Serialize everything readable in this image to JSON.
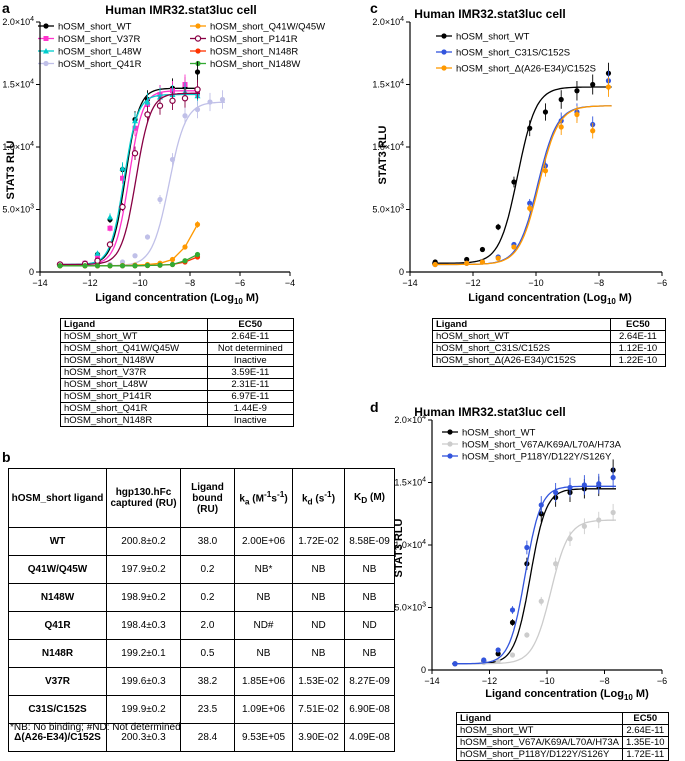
{
  "panel_letters": {
    "a": "a",
    "b": "b",
    "c": "c",
    "d": "d"
  },
  "chart_data": [
    {
      "id": "a",
      "type": "scatter",
      "title": "Human IMR32.stat3luc cell",
      "xlabel_prefix": "Ligand concentration (Log",
      "xlabel_sub": "10",
      "xlabel_suffix": " M)",
      "ylabel": "STAT3 RLU",
      "xlim": [
        -14,
        -4
      ],
      "ylim": [
        0,
        20000
      ],
      "xticks": [
        -14,
        -12,
        -10,
        -8,
        -6,
        -4
      ],
      "yticks": [
        0,
        5000,
        10000,
        15000,
        20000
      ],
      "ytick_labels": [
        {
          "base": "0"
        },
        {
          "base": "5.0×10",
          "exp": "3"
        },
        {
          "base": "1.0×10",
          "exp": "4"
        },
        {
          "base": "1.5×10",
          "exp": "4"
        },
        {
          "base": "2.0×10",
          "exp": "4"
        }
      ],
      "series": [
        {
          "name": "hOSM_short_WT",
          "color": "#000000",
          "marker": "circle",
          "ec50_log": -10.58,
          "bottom": 600,
          "top": 14700,
          "slope": 1.6,
          "x": [
            -13.2,
            -12.2,
            -11.7,
            -11.2,
            -10.7,
            -10.2,
            -9.7,
            -9.2,
            -8.7,
            -8.2,
            -7.7
          ],
          "y": [
            600,
            700,
            1400,
            4200,
            8200,
            12200,
            13800,
            14200,
            14700,
            14800,
            16000
          ]
        },
        {
          "name": "hOSM_short_V37R",
          "color": "#ff33cc",
          "marker": "square",
          "ec50_log": -10.44,
          "bottom": 600,
          "top": 14500,
          "slope": 1.6,
          "x": [
            -13.2,
            -12.2,
            -11.7,
            -11.2,
            -10.7,
            -10.2,
            -9.7,
            -9.2,
            -8.7,
            -8.2,
            -7.7
          ],
          "y": [
            600,
            700,
            1200,
            3500,
            7500,
            11500,
            13400,
            14200,
            14500,
            15000,
            14300
          ]
        },
        {
          "name": "hOSM_short_L48W",
          "color": "#00cccc",
          "marker": "triangle",
          "ec50_log": -10.64,
          "bottom": 600,
          "top": 14200,
          "slope": 1.6,
          "x": [
            -13.2,
            -12.2,
            -11.7,
            -11.2,
            -10.7,
            -10.2,
            -9.7,
            -9.2,
            -8.7,
            -8.2,
            -7.7
          ],
          "y": [
            600,
            700,
            1500,
            4400,
            8300,
            12100,
            13600,
            14000,
            14200,
            14400,
            14100
          ]
        },
        {
          "name": "hOSM_short_Q41R",
          "color": "#c0c0e8",
          "marker": "circle",
          "ec50_log": -8.84,
          "bottom": 500,
          "top": 13600,
          "slope": 1.3,
          "x": [
            -13.2,
            -12.2,
            -11.7,
            -11.2,
            -10.7,
            -10.2,
            -9.7,
            -9.2,
            -8.7,
            -8.2,
            -7.7,
            -7.2,
            -6.7
          ],
          "y": [
            500,
            500,
            550,
            600,
            800,
            1300,
            2800,
            5800,
            9000,
            12500,
            13000,
            13600,
            13800
          ]
        },
        {
          "name": "hOSM_short_Q41W/Q45W",
          "color": "#ff9900",
          "marker": "circle",
          "ec50_log": null,
          "path_only": true,
          "x": [
            -13.2,
            -12.2,
            -11.7,
            -11.2,
            -10.7,
            -10.2,
            -9.7,
            -9.2,
            -8.7,
            -8.2,
            -7.7
          ],
          "y": [
            500,
            500,
            500,
            500,
            520,
            550,
            600,
            700,
            1000,
            2000,
            3800
          ]
        },
        {
          "name": "hOSM_short_P141R",
          "color": "#880044",
          "marker": "open-circle",
          "ec50_log": -10.16,
          "bottom": 600,
          "top": 14300,
          "slope": 1.5,
          "x": [
            -13.2,
            -12.2,
            -11.7,
            -11.2,
            -10.7,
            -10.2,
            -9.7,
            -9.2,
            -8.7,
            -8.2,
            -7.7
          ],
          "y": [
            600,
            650,
            900,
            2200,
            5200,
            9500,
            12600,
            13300,
            13700,
            13900,
            14600
          ]
        },
        {
          "name": "hOSM_short_N148R",
          "color": "#ff3300",
          "marker": "circle",
          "ec50_log": null,
          "path_only": true,
          "x": [
            -13.2,
            -12.2,
            -11.7,
            -11.2,
            -10.7,
            -10.2,
            -9.7,
            -9.2,
            -8.7,
            -8.2,
            -7.7
          ],
          "y": [
            500,
            500,
            500,
            500,
            500,
            500,
            520,
            550,
            600,
            800,
            1200
          ]
        },
        {
          "name": "hOSM_short_N148W",
          "color": "#33aa33",
          "marker": "circle",
          "ec50_log": null,
          "path_only": true,
          "x": [
            -13.2,
            -12.2,
            -11.7,
            -11.2,
            -10.7,
            -10.2,
            -9.7,
            -9.2,
            -8.7,
            -8.2,
            -7.7
          ],
          "y": [
            500,
            500,
            500,
            500,
            500,
            500,
            520,
            550,
            600,
            900,
            1400
          ]
        }
      ],
      "table": {
        "headers": [
          "Ligand",
          "EC50"
        ],
        "rows": [
          [
            "hOSM_short_WT",
            "2.64E-11"
          ],
          [
            "hOSM_short_Q41W/Q45W",
            "Not determined"
          ],
          [
            "hOSM_short_N148W",
            "Inactive"
          ],
          [
            "hOSM_short_V37R",
            "3.59E-11"
          ],
          [
            "hOSM_short_L48W",
            "2.31E-11"
          ],
          [
            "hOSM_short_P141R",
            "6.97E-11"
          ],
          [
            "hOSM_short_Q41R",
            "1.44E-9"
          ],
          [
            "hOSM_short_N148R",
            "Inactive"
          ]
        ]
      }
    },
    {
      "id": "c",
      "type": "scatter",
      "title": "Human IMR32.stat3luc cell",
      "xlabel_prefix": "Ligand concentration (Log",
      "xlabel_sub": "10",
      "xlabel_suffix": " M)",
      "ylabel": "STAT3 RLU",
      "xlim": [
        -14,
        -6
      ],
      "ylim": [
        0,
        20000
      ],
      "xticks": [
        -14,
        -12,
        -10,
        -8,
        -6
      ],
      "yticks": [
        0,
        5000,
        10000,
        15000,
        20000
      ],
      "ytick_labels": [
        {
          "base": "0"
        },
        {
          "base": "5.0×10",
          "exp": "3"
        },
        {
          "base": "1.0×10",
          "exp": "4"
        },
        {
          "base": "1.5×10",
          "exp": "4"
        },
        {
          "base": "2.0×10",
          "exp": "4"
        }
      ],
      "series": [
        {
          "name": "hOSM_short_WT",
          "color": "#000000",
          "marker": "circle",
          "ec50_log": -10.58,
          "bottom": 700,
          "top": 14800,
          "slope": 1.5,
          "x": [
            -13.2,
            -12.2,
            -11.7,
            -11.2,
            -10.7,
            -10.2,
            -9.7,
            -9.2,
            -8.7,
            -8.2,
            -7.7
          ],
          "y": [
            800,
            1000,
            1800,
            3600,
            7200,
            11500,
            12800,
            13800,
            14500,
            15000,
            15900
          ]
        },
        {
          "name": "hOSM_short_C31S/C152S",
          "color": "#3355dd",
          "marker": "circle",
          "ec50_log": -9.95,
          "bottom": 600,
          "top": 13300,
          "slope": 1.4,
          "x": [
            -13.2,
            -12.2,
            -11.7,
            -11.2,
            -10.7,
            -10.2,
            -9.7,
            -9.2,
            -8.7,
            -8.2,
            -7.7
          ],
          "y": [
            600,
            700,
            800,
            1200,
            2200,
            5500,
            8500,
            12100,
            12800,
            11800,
            15300
          ]
        },
        {
          "name": "hOSM_short_Δ(A26-E34)/C152S",
          "color": "#ff9900",
          "marker": "circle",
          "ec50_log": -9.91,
          "bottom": 600,
          "top": 13300,
          "slope": 1.4,
          "x": [
            -13.2,
            -12.2,
            -11.7,
            -11.2,
            -10.7,
            -10.2,
            -9.7,
            -9.2,
            -8.7,
            -8.2,
            -7.7
          ],
          "y": [
            600,
            700,
            800,
            1100,
            2000,
            5100,
            8100,
            11600,
            12600,
            11300,
            14800
          ]
        }
      ],
      "table": {
        "headers": [
          "Ligand",
          "EC50"
        ],
        "rows": [
          [
            "hOSM_short_WT",
            "2.64E-11"
          ],
          [
            "hOSM_short_C31S/C152S",
            "1.12E-10"
          ],
          [
            "hOSM_short_Δ(A26-E34)/C152S",
            "1.22E-10"
          ]
        ]
      }
    },
    {
      "id": "d",
      "type": "scatter",
      "title": "Human IMR32.stat3luc cell",
      "xlabel_prefix": "Ligand concentration (Log",
      "xlabel_sub": "10",
      "xlabel_suffix": " M)",
      "ylabel": "STAT3 RLU",
      "xlim": [
        -14,
        -6
      ],
      "ylim": [
        0,
        20000
      ],
      "xticks": [
        -14,
        -12,
        -10,
        -8,
        -6
      ],
      "yticks": [
        0,
        5000,
        10000,
        15000,
        20000
      ],
      "ytick_labels": [
        {
          "base": "0"
        },
        {
          "base": "5.0×10",
          "exp": "3"
        },
        {
          "base": "1.0×10",
          "exp": "4"
        },
        {
          "base": "1.5×10",
          "exp": "4"
        },
        {
          "base": "2.0×10",
          "exp": "4"
        }
      ],
      "series": [
        {
          "name": "hOSM_short_WT",
          "color": "#000000",
          "marker": "circle",
          "ec50_log": -10.58,
          "bottom": 500,
          "top": 14500,
          "slope": 1.6,
          "x": [
            -13.2,
            -12.2,
            -11.7,
            -11.2,
            -10.7,
            -10.2,
            -9.7,
            -9.2,
            -8.7,
            -8.2,
            -7.7
          ],
          "y": [
            500,
            700,
            1300,
            3800,
            8500,
            12500,
            13800,
            14200,
            14500,
            14700,
            16000
          ]
        },
        {
          "name": "hOSM_short_V67A/K69A/L70A/H73A",
          "color": "#cccccc",
          "marker": "circle",
          "ec50_log": -9.87,
          "bottom": 500,
          "top": 12000,
          "slope": 1.4,
          "x": [
            -13.2,
            -12.2,
            -11.7,
            -11.2,
            -10.7,
            -10.2,
            -9.7,
            -9.2,
            -8.7,
            -8.2,
            -7.7
          ],
          "y": [
            500,
            600,
            700,
            1200,
            2800,
            5500,
            8500,
            10500,
            11500,
            12000,
            12600
          ]
        },
        {
          "name": "hOSM_short_P118Y/D122Y/S126Y",
          "color": "#3355dd",
          "marker": "circle",
          "ec50_log": -10.76,
          "bottom": 500,
          "top": 14700,
          "slope": 1.6,
          "x": [
            -13.2,
            -12.2,
            -11.7,
            -11.2,
            -10.7,
            -10.2,
            -9.7,
            -9.2,
            -8.7,
            -8.2,
            -7.7
          ],
          "y": [
            500,
            800,
            1600,
            4800,
            9800,
            13200,
            14200,
            14600,
            14800,
            14900,
            15400
          ]
        }
      ],
      "table": {
        "headers": [
          "Ligand",
          "EC50"
        ],
        "rows": [
          [
            "hOSM_short_WT",
            "2.64E-11"
          ],
          [
            "hOSM_short_V67A/K69A/L70A/H73A",
            "1.35E-10"
          ],
          [
            "hOSM_short_P118Y/D122Y/S126Y",
            "1.72E-11"
          ]
        ]
      }
    },
    {
      "id": "b",
      "type": "table",
      "headers": [
        {
          "main": "hOSM_short ligand"
        },
        {
          "main": "hgp130.hFc captured (RU)"
        },
        {
          "main": "Ligand bound (RU)"
        },
        {
          "main": "k",
          "sub": "a",
          "tail": " (M",
          "sup1": "-1",
          "mid": "s",
          "sup2": "-1",
          "end": ")"
        },
        {
          "main": "k",
          "sub": "d",
          "tail": " (s",
          "sup1": "-1",
          "end": ")"
        },
        {
          "main": "K",
          "sub": "D",
          "tail": " (M)"
        }
      ],
      "rows": [
        [
          "WT",
          "200.8±0.2",
          "38.0",
          "2.00E+06",
          "1.72E-02",
          "8.58E-09"
        ],
        [
          "Q41W/Q45W",
          "197.9±0.2",
          "0.2",
          "NB*",
          "NB",
          "NB"
        ],
        [
          "N148W",
          "198.9±0.2",
          "0.2",
          "NB",
          "NB",
          "NB"
        ],
        [
          "Q41R",
          "198.4±0.3",
          "2.0",
          "ND#",
          "ND",
          "ND"
        ],
        [
          "N148R",
          "199.2±0.1",
          "0.5",
          "NB",
          "NB",
          "NB"
        ],
        [
          "V37R",
          "199.6±0.3",
          "38.2",
          "1.85E+06",
          "1.53E-02",
          "8.27E-09"
        ],
        [
          "C31S/C152S",
          "199.9±0.2",
          "23.5",
          "1.09E+06",
          "7.51E-02",
          "6.90E-08"
        ],
        [
          "Δ(A26-E34)/C152S",
          "200.3±0.3",
          "28.4",
          "9.53E+05",
          "3.90E-02",
          "4.09E-08"
        ]
      ],
      "footnote": "*NB: No binding; #ND: Not determined"
    }
  ]
}
